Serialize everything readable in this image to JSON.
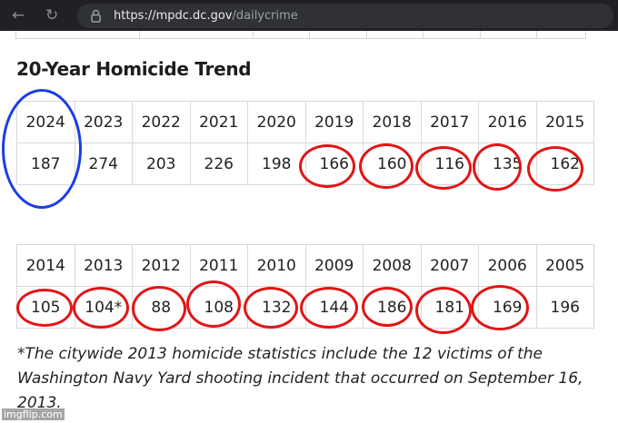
{
  "browser": {
    "url_host": "https://mpdc.dc.gov",
    "url_path": "/dailycrime",
    "back_icon": "arrow-left-icon",
    "reload_icon": "reload-icon",
    "lock_icon": "lock-icon"
  },
  "page": {
    "heading": "20-Year Homicide Trend",
    "table1": {
      "years": [
        "2024",
        "2023",
        "2022",
        "2021",
        "2020",
        "2019",
        "2018",
        "2017",
        "2016",
        "2015"
      ],
      "counts": [
        "187",
        "274",
        "203",
        "226",
        "198",
        "166",
        "160",
        "116",
        "135",
        "162"
      ]
    },
    "table2": {
      "years": [
        "2014",
        "2013",
        "2012",
        "2011",
        "2010",
        "2009",
        "2008",
        "2007",
        "2006",
        "2005"
      ],
      "counts": [
        "105",
        "104*",
        "88",
        "108",
        "132",
        "144",
        "186",
        "181",
        "169",
        "196"
      ]
    },
    "footnote": "*The citywide 2013 homicide statistics include the 12 victims of the Washington Navy Yard shooting incident that occurred on September 16, 2013.",
    "highlights": {
      "blue_circled_years": [
        "2024"
      ],
      "red_circled_years": [
        "2019",
        "2018",
        "2017",
        "2016",
        "2015",
        "2014",
        "2013",
        "2012",
        "2011",
        "2010",
        "2009",
        "2008",
        "2007",
        "2006"
      ],
      "colors": {
        "red": "#e01616",
        "blue": "#1b3de6"
      }
    }
  },
  "watermark": "imgflip.com"
}
